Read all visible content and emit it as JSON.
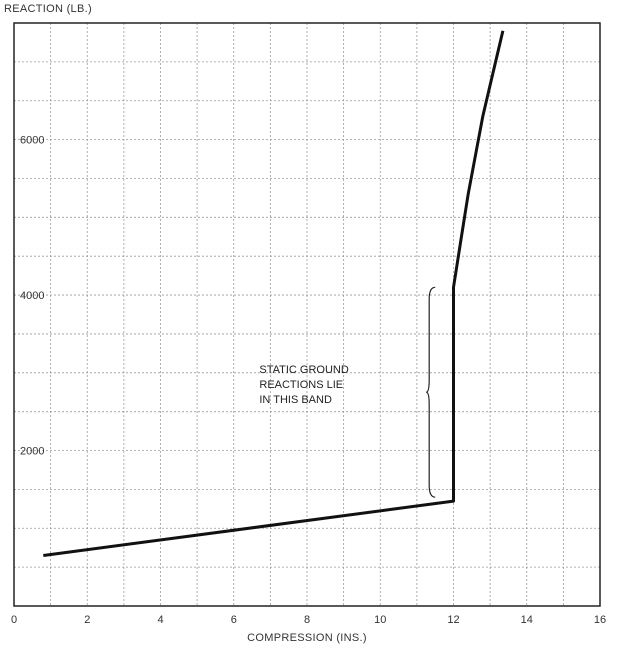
{
  "chart_data": {
    "type": "line",
    "title": "",
    "xlabel": "COMPRESSION (INS.)",
    "ylabel": "REACTION (LB.)",
    "xlim": [
      0,
      16
    ],
    "ylim": [
      0,
      7500
    ],
    "x_ticks": [
      0,
      2,
      4,
      6,
      8,
      10,
      12,
      14,
      16
    ],
    "y_ticks": [
      2000,
      4000,
      6000
    ],
    "grid": true,
    "series": [
      {
        "x": [
          0.8,
          12.0,
          12.0,
          12.2,
          12.4,
          12.6,
          12.8,
          13.0,
          13.2,
          13.35
        ],
        "y": [
          650,
          1350,
          4100,
          4700,
          5300,
          5800,
          6300,
          6700,
          7100,
          7400
        ]
      }
    ],
    "annotation": {
      "lines": [
        "STATIC GROUND",
        "REACTIONS LIE",
        "IN THIS BAND"
      ],
      "range_y": [
        1400,
        4100
      ]
    }
  }
}
